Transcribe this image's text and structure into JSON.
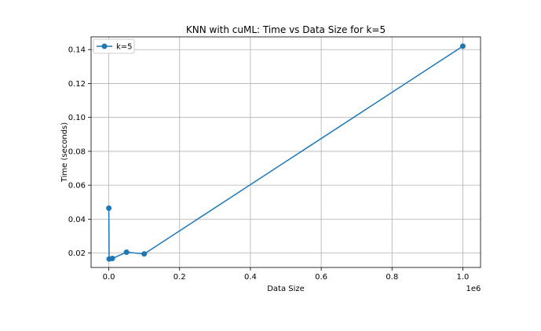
{
  "chart_data": {
    "type": "line",
    "title": "KNN with cuML: Time vs Data Size for k=5",
    "xlabel": "Data Size",
    "ylabel": "Time (seconds)",
    "x_offset_label": "1e6",
    "xlim": [
      -0.05,
      1.05
    ],
    "ylim": [
      0.0115,
      0.1475
    ],
    "x_scale_factor": 1000000,
    "x_ticks": [
      0.0,
      0.2,
      0.4,
      0.6,
      0.8,
      1.0
    ],
    "x_tick_labels": [
      "0.0",
      "0.2",
      "0.4",
      "0.6",
      "0.8",
      "1.0"
    ],
    "y_ticks": [
      0.02,
      0.04,
      0.06,
      0.08,
      0.1,
      0.12,
      0.14
    ],
    "y_tick_labels": [
      "0.02",
      "0.04",
      "0.06",
      "0.08",
      "0.10",
      "0.12",
      "0.14"
    ],
    "grid": true,
    "legend": "top-left",
    "series": [
      {
        "name": "k=5",
        "color": "#1f77b4",
        "marker": "circle",
        "points": [
          {
            "x": 100,
            "y": 0.0465
          },
          {
            "x": 1000,
            "y": 0.0165
          },
          {
            "x": 10000,
            "y": 0.0168
          },
          {
            "x": 50000,
            "y": 0.0205
          },
          {
            "x": 100000,
            "y": 0.0195
          },
          {
            "x": 1000000,
            "y": 0.142
          }
        ]
      }
    ]
  }
}
